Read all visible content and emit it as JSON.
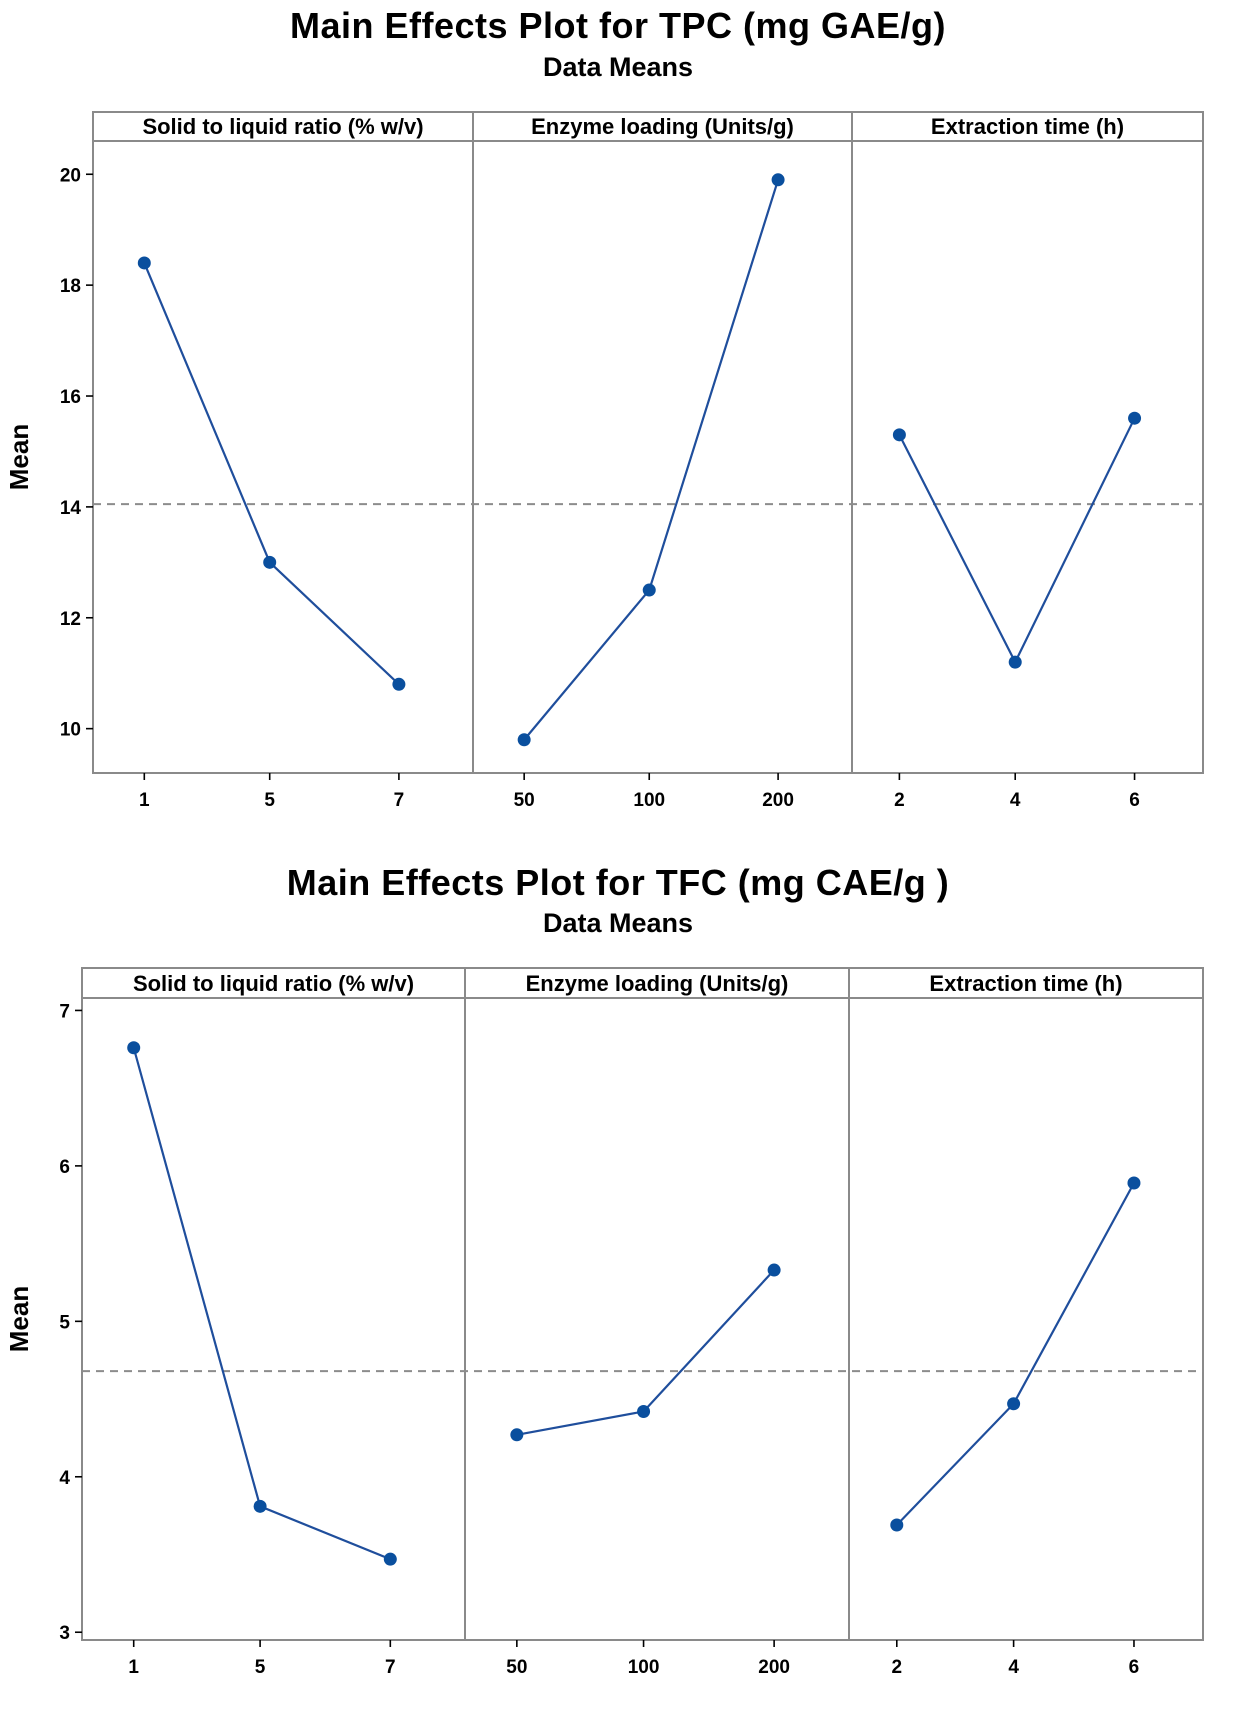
{
  "chart_data": [
    {
      "type": "line",
      "id": "tpc",
      "title": "Main Effects Plot for TPC (mg GAE/g)",
      "subtitle": "Data Means",
      "ylabel": "Mean",
      "ylim": [
        9.2,
        20.6
      ],
      "yticks": [
        10,
        12,
        14,
        16,
        18,
        20
      ],
      "grand_mean": 14.05,
      "line_color": "#1f4e9c",
      "point_color": "#0a4f9e",
      "reference_color": "#8c8c8c",
      "panels": [
        {
          "name": "Solid to liquid ratio (% w/v)",
          "categories": [
            "1",
            "5",
            "7"
          ],
          "values": [
            18.4,
            13.0,
            10.8
          ]
        },
        {
          "name": "Enzyme loading (Units/g)",
          "categories": [
            "50",
            "100",
            "200"
          ],
          "values": [
            9.8,
            12.5,
            19.9
          ]
        },
        {
          "name": "Extraction time (h)",
          "categories": [
            "2",
            "4",
            "6"
          ],
          "values": [
            15.3,
            11.2,
            15.6
          ]
        }
      ]
    },
    {
      "type": "line",
      "id": "tfc",
      "title": "Main Effects Plot for TFC (mg CAE/g )",
      "subtitle": "Data Means",
      "ylabel": "Mean",
      "ylim": [
        2.95,
        7.08
      ],
      "yticks": [
        3,
        4,
        5,
        6,
        7
      ],
      "grand_mean": 4.68,
      "line_color": "#1f4e9c",
      "point_color": "#0a4f9e",
      "reference_color": "#8c8c8c",
      "panels": [
        {
          "name": "Solid to liquid ratio (% w/v)",
          "categories": [
            "1",
            "5",
            "7"
          ],
          "values": [
            6.76,
            3.81,
            3.47
          ]
        },
        {
          "name": "Enzyme loading (Units/g)",
          "categories": [
            "50",
            "100",
            "200"
          ],
          "values": [
            4.27,
            4.42,
            5.33
          ]
        },
        {
          "name": "Extraction time (h)",
          "categories": [
            "2",
            "4",
            "6"
          ],
          "values": [
            3.69,
            4.47,
            5.89
          ]
        }
      ]
    }
  ]
}
